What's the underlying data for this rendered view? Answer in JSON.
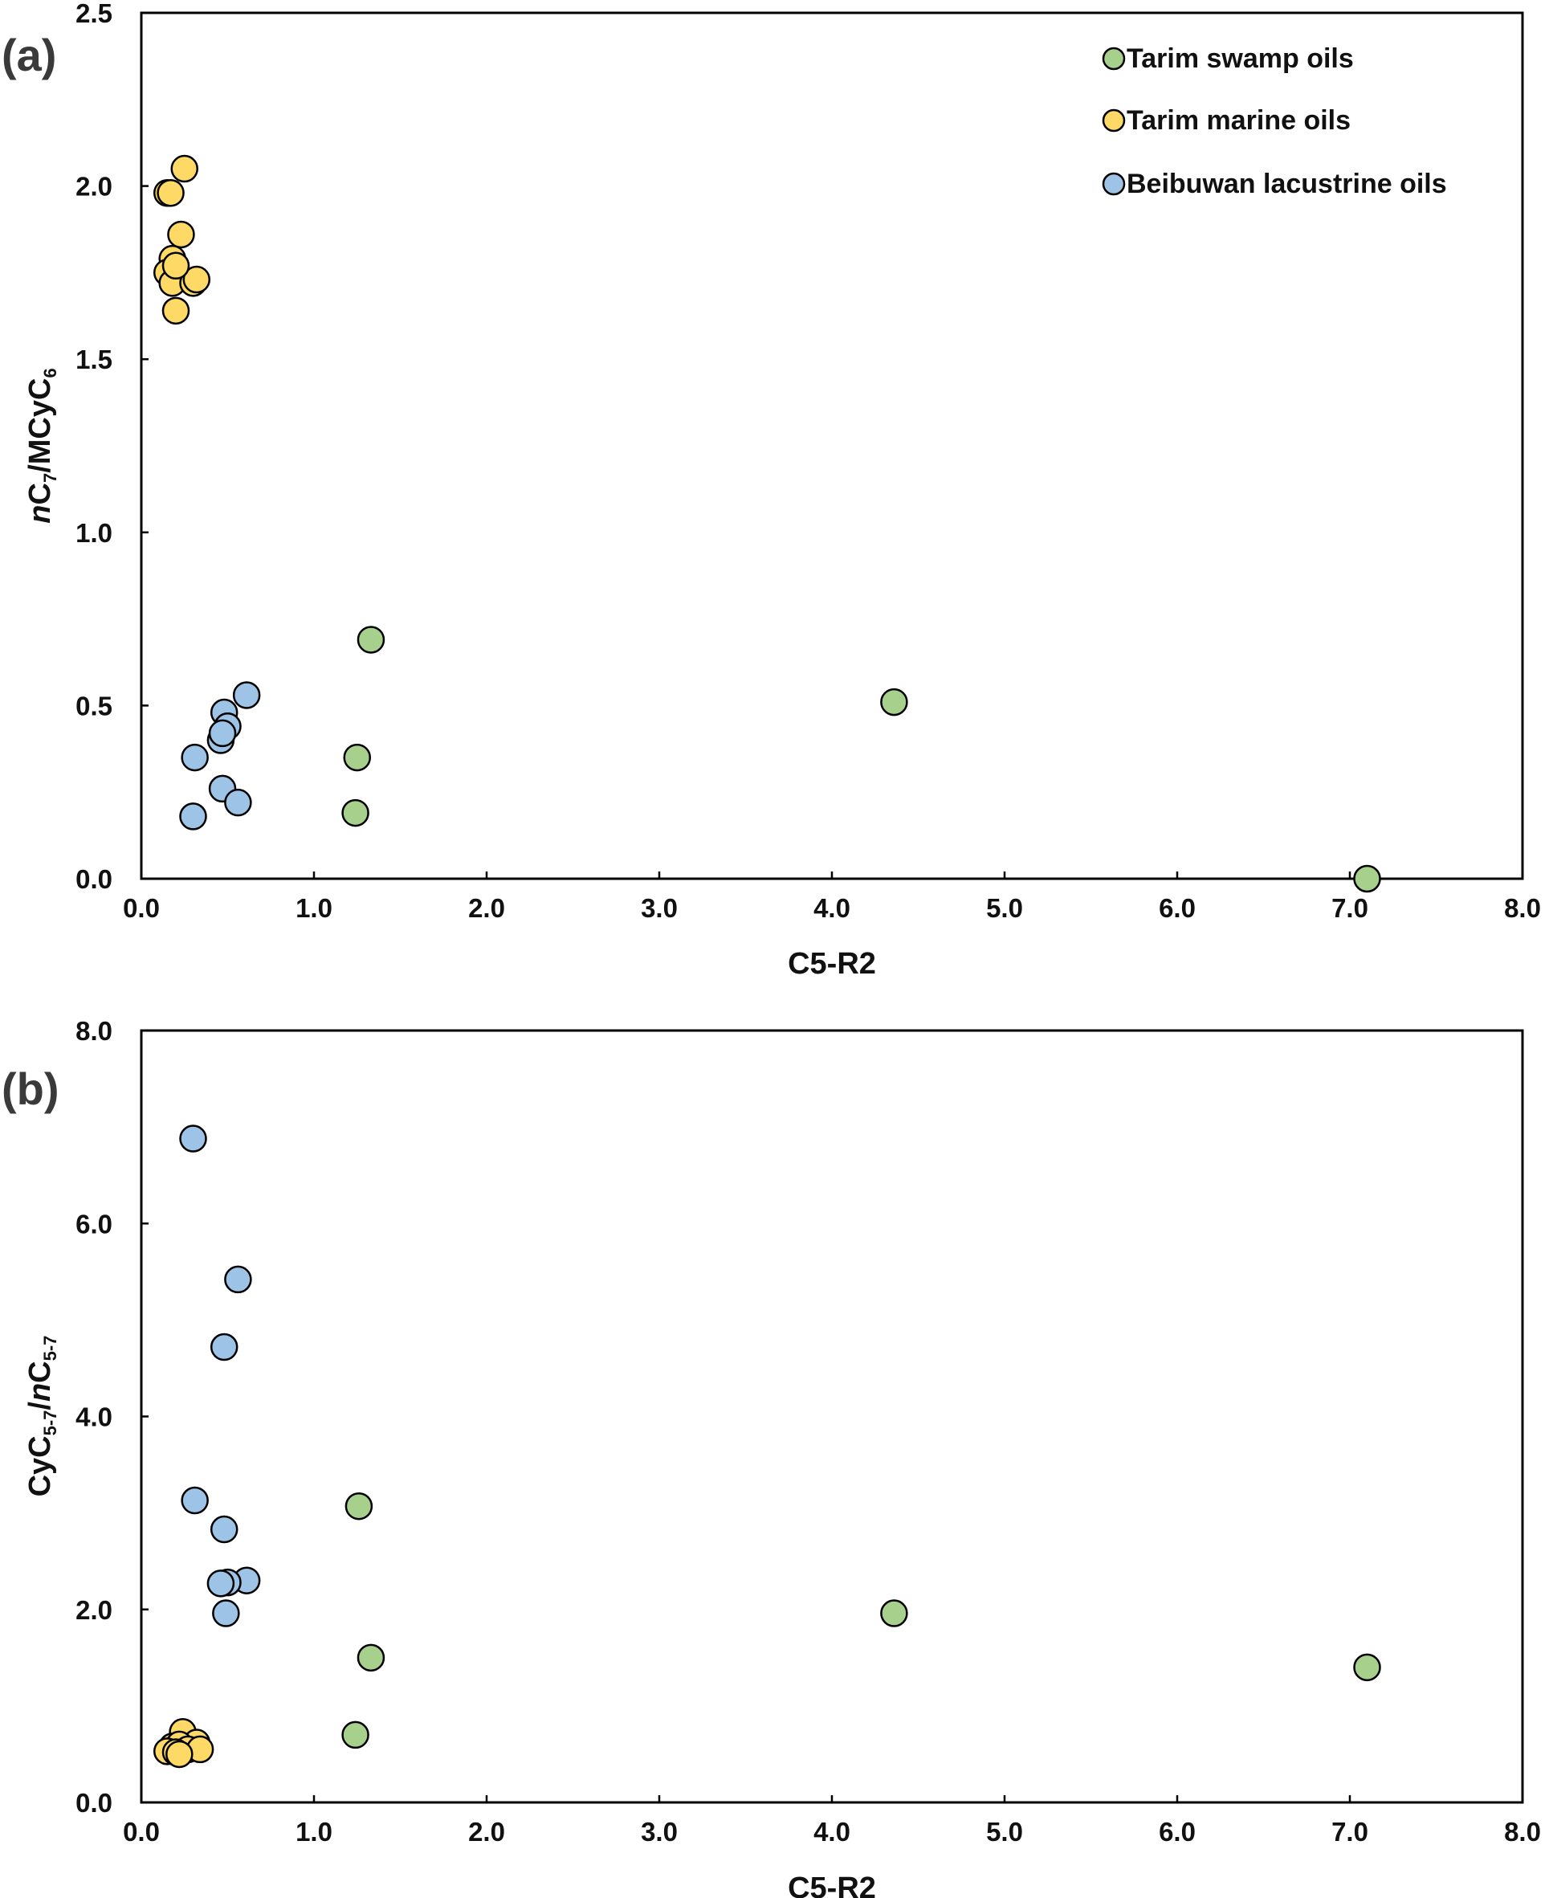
{
  "series_styles": [
    {
      "name": "Tarim swamp oils",
      "color": "#a8d08d"
    },
    {
      "name": "Tarim marine oils",
      "color": "#ffd966"
    },
    {
      "name": "Beibuwan lacustrine oils",
      "color": "#9dc3e6"
    }
  ],
  "chart_data": [
    {
      "type": "scatter",
      "panel_label": "(a)",
      "xlabel": "C5-R2",
      "ylabel": {
        "prefix": "",
        "italic": "n",
        "main": "C",
        "sub": "7",
        "rest": "/MCyC",
        "sub2": "6"
      },
      "xlim": [
        0,
        8
      ],
      "ylim": [
        0,
        2.5
      ],
      "x_ticks": [
        "0.0",
        "1.0",
        "2.0",
        "3.0",
        "4.0",
        "5.0",
        "6.0",
        "7.0",
        "8.0"
      ],
      "y_ticks": [
        "0.0",
        "0.5",
        "1.0",
        "1.5",
        "2.0",
        "2.5"
      ],
      "legend": {
        "position": "top-right",
        "entries": [
          "Tarim swamp oils",
          "Tarim marine oils",
          "Beibuwan lacustrine oils"
        ]
      },
      "series": [
        {
          "name": "Tarim swamp oils",
          "points": [
            [
              1.33,
              0.69
            ],
            [
              1.25,
              0.35
            ],
            [
              1.24,
              0.19
            ],
            [
              4.36,
              0.51
            ],
            [
              7.1,
              0.0
            ]
          ]
        },
        {
          "name": "Tarim marine oils",
          "points": [
            [
              0.25,
              2.05
            ],
            [
              0.15,
              1.98
            ],
            [
              0.17,
              1.98
            ],
            [
              0.23,
              1.86
            ],
            [
              0.18,
              1.79
            ],
            [
              0.2,
              1.76
            ],
            [
              0.15,
              1.75
            ],
            [
              0.2,
              1.73
            ],
            [
              0.18,
              1.72
            ],
            [
              0.3,
              1.72
            ],
            [
              0.32,
              1.73
            ],
            [
              0.2,
              1.77
            ],
            [
              0.2,
              1.64
            ]
          ]
        },
        {
          "name": "Beibuwan lacustrine oils",
          "points": [
            [
              0.61,
              0.53
            ],
            [
              0.48,
              0.48
            ],
            [
              0.5,
              0.44
            ],
            [
              0.46,
              0.4
            ],
            [
              0.47,
              0.42
            ],
            [
              0.31,
              0.35
            ],
            [
              0.47,
              0.26
            ],
            [
              0.56,
              0.22
            ],
            [
              0.3,
              0.18
            ]
          ]
        }
      ]
    },
    {
      "type": "scatter",
      "panel_label": "(b)",
      "xlabel": "C5-R2",
      "ylabel": {
        "prefix": "CyC",
        "italic": "",
        "main": "",
        "sub": "5-7",
        "rest": "/",
        "italic2": "n",
        "main2": "C",
        "sub2": "5-7"
      },
      "xlim": [
        0,
        8
      ],
      "ylim": [
        0,
        8
      ],
      "x_ticks": [
        "0.0",
        "1.0",
        "2.0",
        "3.0",
        "4.0",
        "5.0",
        "6.0",
        "7.0",
        "8.0"
      ],
      "y_ticks": [
        "0.0",
        "2.0",
        "4.0",
        "6.0",
        "8.0"
      ],
      "series": [
        {
          "name": "Tarim swamp oils",
          "points": [
            [
              1.26,
              3.07
            ],
            [
              4.36,
              1.96
            ],
            [
              1.33,
              1.5
            ],
            [
              1.24,
              0.7
            ],
            [
              7.1,
              1.4
            ]
          ]
        },
        {
          "name": "Tarim marine oils",
          "points": [
            [
              0.24,
              0.73
            ],
            [
              0.32,
              0.62
            ],
            [
              0.18,
              0.58
            ],
            [
              0.22,
              0.6
            ],
            [
              0.27,
              0.55
            ],
            [
              0.34,
              0.55
            ],
            [
              0.15,
              0.53
            ],
            [
              0.2,
              0.52
            ],
            [
              0.22,
              0.5
            ]
          ]
        },
        {
          "name": "Beibuwan lacustrine oils",
          "points": [
            [
              0.3,
              6.88
            ],
            [
              0.56,
              5.42
            ],
            [
              0.48,
              4.72
            ],
            [
              0.31,
              3.13
            ],
            [
              0.48,
              2.83
            ],
            [
              0.61,
              2.3
            ],
            [
              0.5,
              2.28
            ],
            [
              0.46,
              2.27
            ],
            [
              0.49,
              1.96
            ]
          ]
        }
      ]
    }
  ]
}
